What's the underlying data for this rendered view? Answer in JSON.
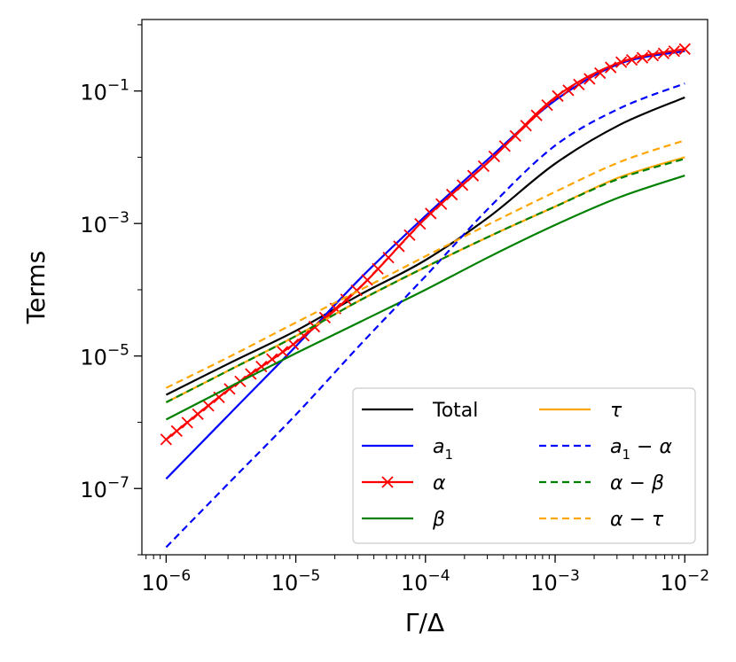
{
  "chart_data": {
    "type": "line",
    "scale": {
      "x": "log",
      "y": "log"
    },
    "xlabel": "Γ/Δ",
    "ylabel": "Terms",
    "xlim": [
      6.5e-07,
      0.015
    ],
    "ylim": [
      1e-08,
      1.2
    ],
    "x_ticks": [
      {
        "value": 1e-06,
        "mantissa": "10",
        "exponent": "−6"
      },
      {
        "value": 1e-05,
        "mantissa": "10",
        "exponent": "−5"
      },
      {
        "value": 0.0001,
        "mantissa": "10",
        "exponent": "−4"
      },
      {
        "value": 0.001,
        "mantissa": "10",
        "exponent": "−3"
      },
      {
        "value": 0.01,
        "mantissa": "10",
        "exponent": "−2"
      }
    ],
    "y_ticks": [
      {
        "value": 1e-07,
        "mantissa": "10",
        "exponent": "−7"
      },
      {
        "value": 1e-05,
        "mantissa": "10",
        "exponent": "−5"
      },
      {
        "value": 0.001,
        "mantissa": "10",
        "exponent": "−3"
      },
      {
        "value": 0.1,
        "mantissa": "10",
        "exponent": "−1"
      }
    ],
    "x": [
      1e-06,
      3.16e-06,
      1e-05,
      3.16e-05,
      0.0001,
      0.000316,
      0.001,
      0.00316,
      0.01
    ],
    "series": [
      {
        "name": "Total",
        "label": "Total",
        "color": "#000000",
        "dash": "solid",
        "marker": "none",
        "values": [
          2.6e-06,
          8e-06,
          2.4e-05,
          8.5e-05,
          0.00028,
          0.0013,
          0.008,
          0.031,
          0.08
        ]
      },
      {
        "name": "a1",
        "label": "a",
        "sub": "1",
        "color": "#0000ff",
        "dash": "solid",
        "marker": "none",
        "values": [
          1.4e-07,
          1.4e-06,
          1.4e-05,
          0.00015,
          0.0013,
          0.01,
          0.072,
          0.26,
          0.4
        ]
      },
      {
        "name": "alpha",
        "label": "α",
        "color": "#ff0000",
        "dash": "solid",
        "marker": "x",
        "values": [
          5.5e-07,
          3.3e-06,
          1.6e-05,
          0.00011,
          0.0012,
          0.009,
          0.08,
          0.27,
          0.43
        ]
      },
      {
        "name": "beta",
        "label": "β",
        "color": "#008000",
        "dash": "solid",
        "marker": "none",
        "values": [
          1.1e-06,
          3.5e-06,
          1.1e-05,
          3.3e-05,
          0.0001,
          0.00032,
          0.00095,
          0.0025,
          0.0053
        ]
      },
      {
        "name": "tau",
        "label": "τ",
        "color": "#ffa500",
        "dash": "solid",
        "marker": "none",
        "values": [
          2e-06,
          6.3e-06,
          2e-05,
          7e-05,
          0.00022,
          0.00065,
          0.0018,
          0.005,
          0.01
        ]
      },
      {
        "name": "a1-alpha",
        "label": "a",
        "sub": "1",
        "suffix": " − α",
        "color": "#0000ff",
        "dash": "dashed",
        "marker": "none",
        "values": [
          1.3e-08,
          1.3e-07,
          1.3e-06,
          1.5e-05,
          0.00016,
          0.0018,
          0.015,
          0.055,
          0.13
        ]
      },
      {
        "name": "alpha-beta",
        "label": "α − β",
        "color": "#008000",
        "dash": "dashed",
        "marker": "none",
        "values": [
          2e-06,
          6.3e-06,
          2e-05,
          7e-05,
          0.00022,
          0.00065,
          0.0018,
          0.0048,
          0.0095
        ]
      },
      {
        "name": "alpha-tau",
        "label": "α − τ",
        "color": "#ffa500",
        "dash": "dashed",
        "marker": "none",
        "values": [
          3.3e-06,
          1e-05,
          3.2e-05,
          0.0001,
          0.00032,
          0.001,
          0.003,
          0.0085,
          0.018
        ]
      }
    ],
    "grid": false,
    "legend": {
      "location": "lower-right",
      "columns": 2
    }
  }
}
